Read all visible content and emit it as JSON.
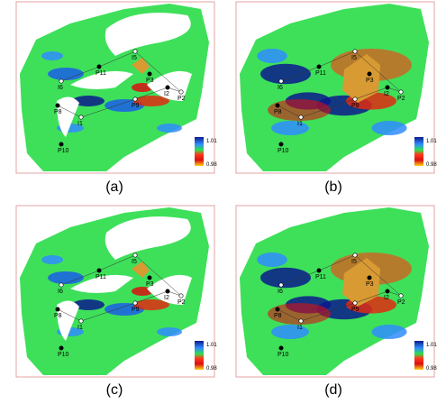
{
  "panels": [
    {
      "caption": "(a)",
      "colorbar": {
        "max": "1.01",
        "min": "0.98"
      },
      "wells": [
        "I5",
        "P11",
        "I6",
        "P8",
        "I1",
        "P10",
        "P9",
        "I2",
        "P2",
        "P3"
      ]
    },
    {
      "caption": "(b)",
      "colorbar": {
        "max": "1.01",
        "min": "0.98"
      },
      "wells": [
        "I5",
        "P11",
        "I6",
        "P8",
        "I1",
        "P10",
        "P9",
        "I2",
        "P2",
        "P3"
      ]
    },
    {
      "caption": "(c)",
      "colorbar": {
        "max": "1.01",
        "min": "0.98"
      },
      "wells": [
        "I5",
        "P11",
        "I6",
        "P8",
        "I1",
        "P10",
        "P9",
        "I2",
        "P2",
        "P3"
      ]
    },
    {
      "caption": "(d)",
      "colorbar": {
        "max": "1.01",
        "min": "0.98"
      },
      "wells": [
        "I5",
        "P11",
        "I6",
        "P8",
        "I1",
        "P10",
        "P9",
        "I2",
        "P2",
        "P3"
      ]
    }
  ]
}
